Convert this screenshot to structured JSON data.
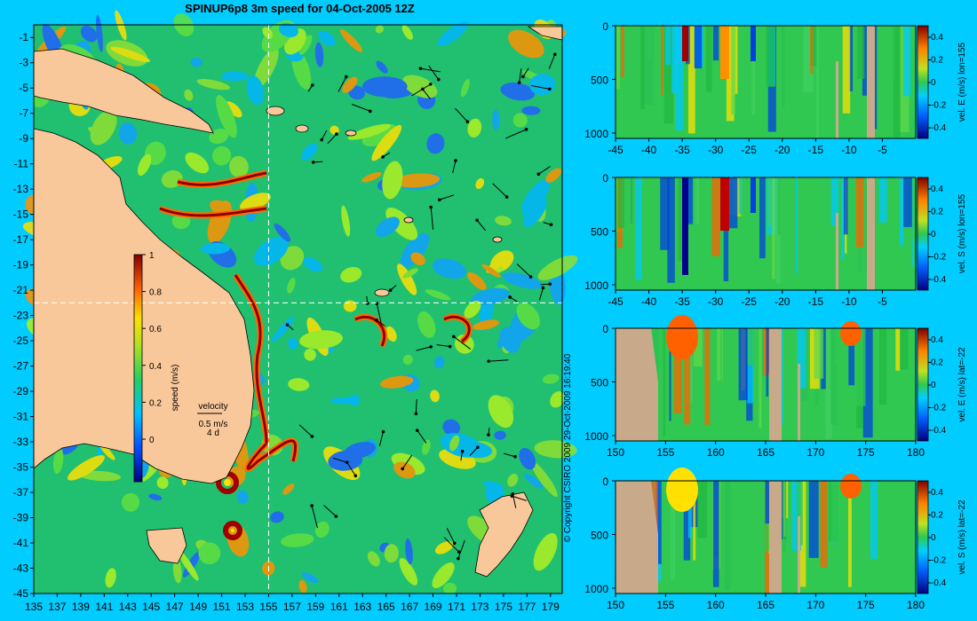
{
  "title": "SPINUP6p8 3m speed for 04-Oct-2005 12Z",
  "copyright": "© Copyright CSIRO 2009   29-Oct-2009 16:19:40",
  "colors": {
    "background": "#00ccff",
    "land": "#f9c89a",
    "panel_land": "#c8aa8a",
    "ocean_base": "#20c070",
    "crosshair": "#ffffff"
  },
  "chart_data": [
    {
      "type": "heatmap",
      "name": "map",
      "xlim": [
        135,
        180
      ],
      "ylim": [
        -45,
        0
      ],
      "xticks": [
        135,
        137,
        139,
        141,
        143,
        145,
        147,
        149,
        151,
        153,
        155,
        157,
        159,
        161,
        163,
        165,
        167,
        169,
        171,
        173,
        175,
        177,
        179
      ],
      "yticks": [
        -1,
        -3,
        -5,
        -7,
        -9,
        -11,
        -13,
        -15,
        -17,
        -19,
        -21,
        -23,
        -25,
        -27,
        -29,
        -31,
        -33,
        -35,
        -37,
        -39,
        -41,
        -43,
        -45
      ],
      "crosshair": {
        "lon": 155,
        "lat": -22
      },
      "colorbar": {
        "label": "speed (m/s)",
        "ticks": [
          "1",
          "0.8",
          "0.6",
          "0.4",
          "0.2",
          "0"
        ],
        "range": [
          0,
          1
        ]
      },
      "legend": {
        "label": "velocity",
        "speed": "0.5 m/s",
        "duration": "4 d"
      }
    },
    {
      "type": "heatmap",
      "name": "section-1",
      "xticks": [
        "-45",
        "-40",
        "-35",
        "-30",
        "-25",
        "-20",
        "-15",
        "-10",
        "-5"
      ],
      "xlim": [
        -45,
        0
      ],
      "yticks": [
        "0",
        "500",
        "1000"
      ],
      "ylim": [
        0,
        1050
      ],
      "colorbar": {
        "label": "vel. E (m/s) lon=155",
        "ticks": [
          "0.4",
          "0.2",
          "0",
          "-0.2",
          "-0.4"
        ],
        "range": [
          -0.4,
          0.4
        ]
      }
    },
    {
      "type": "heatmap",
      "name": "section-2",
      "xticks": [
        "-45",
        "-40",
        "-35",
        "-30",
        "-25",
        "-20",
        "-15",
        "-10",
        "-5"
      ],
      "xlim": [
        -45,
        0
      ],
      "yticks": [
        "0",
        "500",
        "1000"
      ],
      "ylim": [
        0,
        1050
      ],
      "colorbar": {
        "label": "vel. S (m/s) lon=155",
        "ticks": [
          "0.4",
          "0.2",
          "0",
          "-0.2",
          "-0.4"
        ],
        "range": [
          -0.4,
          0.4
        ]
      }
    },
    {
      "type": "heatmap",
      "name": "section-3",
      "xticks": [
        "150",
        "155",
        "160",
        "165",
        "170",
        "175",
        "180"
      ],
      "xlim": [
        150,
        180
      ],
      "yticks": [
        "0",
        "500",
        "1000"
      ],
      "ylim": [
        0,
        1050
      ],
      "colorbar": {
        "label": "vel. E (m/s) lat=-22",
        "ticks": [
          "0.4",
          "0.2",
          "0",
          "-0.2",
          "-0.4"
        ],
        "range": [
          -0.4,
          0.4
        ]
      }
    },
    {
      "type": "heatmap",
      "name": "section-4",
      "xticks": [
        "150",
        "155",
        "160",
        "165",
        "170",
        "175",
        "180"
      ],
      "xlim": [
        150,
        180
      ],
      "yticks": [
        "0",
        "500",
        "1000"
      ],
      "ylim": [
        0,
        1050
      ],
      "colorbar": {
        "label": "vel. S (m/s) lat=-22",
        "ticks": [
          "0.4",
          "0.2",
          "0",
          "-0.2",
          "-0.4"
        ],
        "range": [
          -0.4,
          0.4
        ]
      }
    }
  ]
}
